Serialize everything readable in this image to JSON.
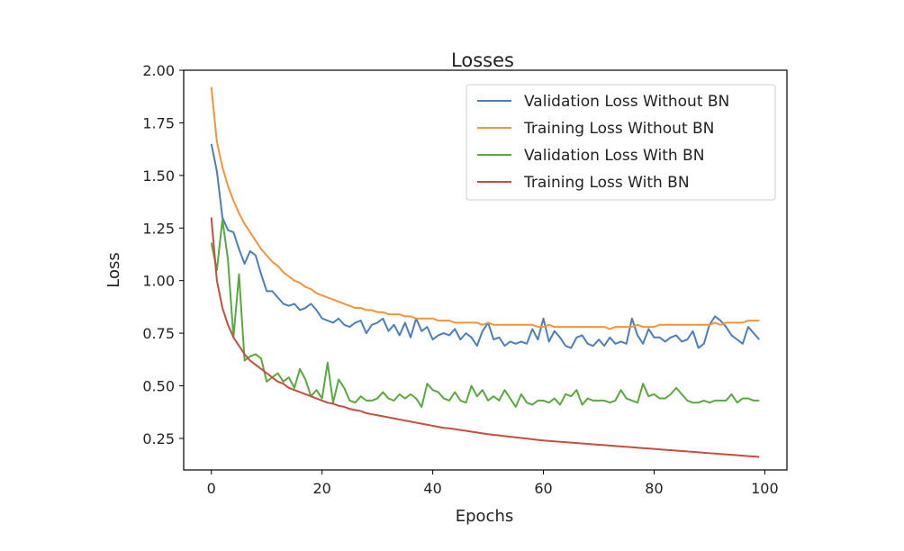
{
  "chart_data": {
    "type": "line",
    "title": "Losses",
    "xlabel": "Epochs",
    "ylabel": "Loss",
    "xlim": [
      -5,
      104
    ],
    "ylim": [
      0.1,
      2.0
    ],
    "xticks": [
      0,
      20,
      40,
      60,
      80,
      100
    ],
    "yticks": [
      0.25,
      0.5,
      0.75,
      1.0,
      1.25,
      1.5,
      1.75,
      2.0
    ],
    "xtick_labels": [
      "0",
      "20",
      "40",
      "60",
      "80",
      "100"
    ],
    "ytick_labels": [
      "0.25",
      "0.50",
      "0.75",
      "1.00",
      "1.25",
      "1.50",
      "1.75",
      "2.00"
    ],
    "grid": false,
    "legend_position": "top-right",
    "series": [
      {
        "name": "Validation Loss Without BN",
        "color": "#4c7fba",
        "values": [
          1.65,
          1.52,
          1.3,
          1.24,
          1.23,
          1.15,
          1.08,
          1.14,
          1.12,
          1.03,
          0.95,
          0.95,
          0.92,
          0.89,
          0.88,
          0.89,
          0.86,
          0.87,
          0.89,
          0.86,
          0.82,
          0.81,
          0.8,
          0.82,
          0.79,
          0.78,
          0.8,
          0.81,
          0.75,
          0.79,
          0.8,
          0.82,
          0.76,
          0.79,
          0.74,
          0.8,
          0.73,
          0.82,
          0.76,
          0.78,
          0.72,
          0.74,
          0.75,
          0.74,
          0.77,
          0.72,
          0.75,
          0.73,
          0.69,
          0.76,
          0.8,
          0.72,
          0.73,
          0.69,
          0.71,
          0.7,
          0.71,
          0.7,
          0.77,
          0.72,
          0.82,
          0.71,
          0.76,
          0.73,
          0.69,
          0.68,
          0.73,
          0.74,
          0.7,
          0.69,
          0.72,
          0.69,
          0.73,
          0.7,
          0.71,
          0.7,
          0.82,
          0.74,
          0.7,
          0.77,
          0.73,
          0.73,
          0.71,
          0.73,
          0.74,
          0.71,
          0.72,
          0.76,
          0.68,
          0.7,
          0.79,
          0.83,
          0.81,
          0.78,
          0.74,
          0.72,
          0.7,
          0.78,
          0.75,
          0.72
        ]
      },
      {
        "name": "Training Loss Without BN",
        "color": "#f0953a",
        "values": [
          1.92,
          1.66,
          1.54,
          1.45,
          1.38,
          1.32,
          1.27,
          1.23,
          1.19,
          1.15,
          1.12,
          1.09,
          1.07,
          1.04,
          1.02,
          1.0,
          0.99,
          0.97,
          0.96,
          0.94,
          0.93,
          0.92,
          0.91,
          0.9,
          0.89,
          0.88,
          0.87,
          0.87,
          0.86,
          0.86,
          0.85,
          0.85,
          0.84,
          0.84,
          0.84,
          0.83,
          0.83,
          0.82,
          0.82,
          0.82,
          0.82,
          0.81,
          0.81,
          0.81,
          0.8,
          0.8,
          0.8,
          0.8,
          0.8,
          0.79,
          0.8,
          0.79,
          0.79,
          0.79,
          0.79,
          0.79,
          0.79,
          0.79,
          0.79,
          0.78,
          0.78,
          0.79,
          0.78,
          0.78,
          0.78,
          0.78,
          0.78,
          0.78,
          0.78,
          0.78,
          0.78,
          0.78,
          0.77,
          0.78,
          0.78,
          0.78,
          0.78,
          0.79,
          0.78,
          0.78,
          0.78,
          0.79,
          0.79,
          0.79,
          0.79,
          0.79,
          0.79,
          0.79,
          0.79,
          0.79,
          0.79,
          0.8,
          0.79,
          0.8,
          0.8,
          0.8,
          0.8,
          0.81,
          0.81,
          0.81
        ]
      },
      {
        "name": "Validation Loss With BN",
        "color": "#5aa840",
        "values": [
          1.18,
          1.05,
          1.29,
          1.1,
          0.73,
          1.03,
          0.62,
          0.64,
          0.65,
          0.63,
          0.52,
          0.54,
          0.56,
          0.52,
          0.54,
          0.49,
          0.58,
          0.53,
          0.45,
          0.48,
          0.44,
          0.61,
          0.42,
          0.53,
          0.49,
          0.43,
          0.42,
          0.45,
          0.43,
          0.43,
          0.44,
          0.47,
          0.44,
          0.43,
          0.46,
          0.44,
          0.46,
          0.44,
          0.4,
          0.51,
          0.48,
          0.47,
          0.44,
          0.43,
          0.47,
          0.43,
          0.42,
          0.5,
          0.45,
          0.48,
          0.43,
          0.45,
          0.43,
          0.48,
          0.44,
          0.4,
          0.46,
          0.42,
          0.41,
          0.43,
          0.43,
          0.42,
          0.44,
          0.41,
          0.46,
          0.45,
          0.48,
          0.41,
          0.44,
          0.43,
          0.43,
          0.43,
          0.42,
          0.43,
          0.48,
          0.44,
          0.43,
          0.42,
          0.51,
          0.45,
          0.46,
          0.44,
          0.44,
          0.46,
          0.49,
          0.46,
          0.43,
          0.42,
          0.42,
          0.43,
          0.42,
          0.43,
          0.43,
          0.43,
          0.46,
          0.42,
          0.44,
          0.44,
          0.43,
          0.43
        ]
      },
      {
        "name": "Training Loss With BN",
        "color": "#c44e3f",
        "values": [
          1.3,
          1.0,
          0.87,
          0.79,
          0.73,
          0.69,
          0.65,
          0.62,
          0.6,
          0.58,
          0.56,
          0.54,
          0.52,
          0.51,
          0.49,
          0.48,
          0.47,
          0.46,
          0.45,
          0.44,
          0.43,
          0.42,
          0.415,
          0.405,
          0.4,
          0.39,
          0.385,
          0.38,
          0.37,
          0.365,
          0.36,
          0.355,
          0.35,
          0.345,
          0.34,
          0.335,
          0.33,
          0.325,
          0.32,
          0.315,
          0.31,
          0.305,
          0.3,
          0.298,
          0.294,
          0.29,
          0.286,
          0.282,
          0.278,
          0.274,
          0.27,
          0.267,
          0.264,
          0.261,
          0.258,
          0.255,
          0.252,
          0.249,
          0.246,
          0.243,
          0.24,
          0.238,
          0.236,
          0.234,
          0.232,
          0.23,
          0.228,
          0.226,
          0.224,
          0.222,
          0.22,
          0.218,
          0.216,
          0.214,
          0.212,
          0.21,
          0.208,
          0.206,
          0.204,
          0.202,
          0.2,
          0.198,
          0.196,
          0.194,
          0.192,
          0.19,
          0.188,
          0.186,
          0.184,
          0.182,
          0.18,
          0.178,
          0.176,
          0.174,
          0.172,
          0.17,
          0.168,
          0.166,
          0.164,
          0.162
        ]
      }
    ]
  }
}
